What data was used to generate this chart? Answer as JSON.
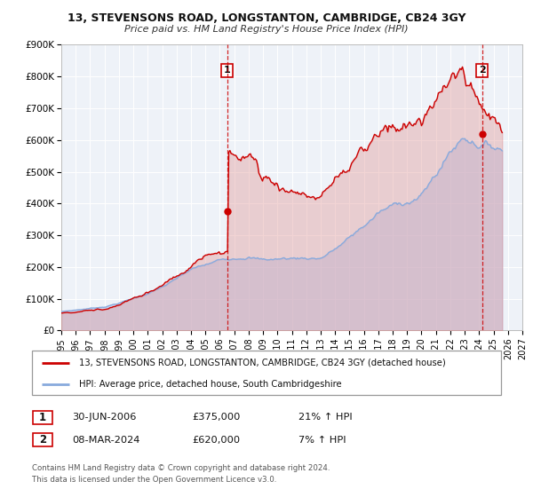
{
  "title1": "13, STEVENSONS ROAD, LONGSTANTON, CAMBRIDGE, CB24 3GY",
  "title2": "Price paid vs. HM Land Registry's House Price Index (HPI)",
  "xlim": [
    1995.0,
    2027.0
  ],
  "ylim": [
    0,
    900000
  ],
  "yticks": [
    0,
    100000,
    200000,
    300000,
    400000,
    500000,
    600000,
    700000,
    800000,
    900000
  ],
  "ytick_labels": [
    "£0",
    "£100K",
    "£200K",
    "£300K",
    "£400K",
    "£500K",
    "£600K",
    "£700K",
    "£800K",
    "£900K"
  ],
  "xticks": [
    1995,
    1996,
    1997,
    1998,
    1999,
    2000,
    2001,
    2002,
    2003,
    2004,
    2005,
    2006,
    2007,
    2008,
    2009,
    2010,
    2011,
    2012,
    2013,
    2014,
    2015,
    2016,
    2017,
    2018,
    2019,
    2020,
    2021,
    2022,
    2023,
    2024,
    2025,
    2026,
    2027
  ],
  "line1_color": "#cc0000",
  "line2_color": "#88aadd",
  "line1_fill_color": "#dd8888",
  "line2_fill_color": "#bbccee",
  "background_color": "#eef2f8",
  "grid_color": "#ffffff",
  "vline_color": "#cc0000",
  "sale1_x": 2006.5,
  "sale1_y": 375000,
  "sale2_x": 2024.2,
  "sale2_y": 620000,
  "legend_line1": "13, STEVENSONS ROAD, LONGSTANTON, CAMBRIDGE, CB24 3GY (detached house)",
  "legend_line2": "HPI: Average price, detached house, South Cambridgeshire",
  "note1_date": "30-JUN-2006",
  "note1_price": "£375,000",
  "note1_hpi": "21% ↑ HPI",
  "note2_date": "08-MAR-2024",
  "note2_price": "£620,000",
  "note2_hpi": "7% ↑ HPI",
  "footer1": "Contains HM Land Registry data © Crown copyright and database right 2024.",
  "footer2": "This data is licensed under the Open Government Licence v3.0."
}
